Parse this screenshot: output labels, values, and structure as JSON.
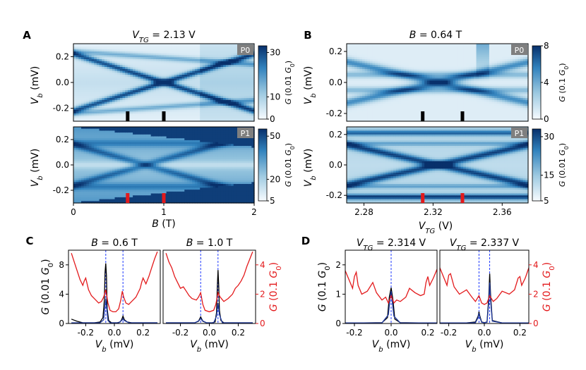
{
  "chart_data": [
    {
      "type": "heatmap",
      "panel": "A",
      "title": "V_TG = 2.13 V",
      "xlabel": "B (T)",
      "ylabel": "V_b (mV)",
      "xlim": [
        0,
        2
      ],
      "ylim": [
        -0.3,
        0.3
      ],
      "xticks": [
        "0",
        "1",
        "2"
      ],
      "yticks": [
        "0.2",
        "0.0",
        "-0.2"
      ],
      "subplots": [
        {
          "tag": "P0",
          "colorbar": {
            "label": "G (0.01 G0)",
            "ticks": [
              "30",
              "10",
              "0"
            ],
            "range": [
              0,
              33
            ]
          },
          "markers_x": [
            0.6,
            1.0
          ],
          "marker_color": "#000000"
        },
        {
          "tag": "P1",
          "colorbar": {
            "label": "G (0.01 G0)",
            "ticks": [
              "50",
              "20",
              "5"
            ],
            "range": [
              5,
              55
            ]
          },
          "markers_x": [
            0.6,
            1.0
          ],
          "marker_color": "#e31a1c"
        }
      ]
    },
    {
      "type": "heatmap",
      "panel": "B",
      "title": "B = 0.64 T",
      "xlabel": "V_TG (V)",
      "ylabel": "V_b (mV)",
      "xlim": [
        2.27,
        2.375
      ],
      "ylim": [
        -0.25,
        0.25
      ],
      "xticks": [
        "2.28",
        "2.32",
        "2.36"
      ],
      "yticks": [
        "0.2",
        "0.0",
        "-0.2"
      ],
      "subplots": [
        {
          "tag": "P0",
          "colorbar": {
            "label": "G (0.1 G0)",
            "ticks": [
              "8",
              "4",
              "0"
            ],
            "range": [
              0,
              8
            ]
          },
          "markers_x": [
            2.314,
            2.337
          ],
          "marker_color": "#000000"
        },
        {
          "tag": "P1",
          "colorbar": {
            "label": "G (0.01 G0)",
            "ticks": [
              "30",
              "15",
              "5"
            ],
            "range": [
              5,
              33
            ]
          },
          "markers_x": [
            2.314,
            2.337
          ],
          "marker_color": "#e31a1c"
        }
      ]
    },
    {
      "type": "line",
      "panel": "C",
      "xlabel": "V_b (mV)",
      "ylabel_left": "G (0.01 G0)",
      "ylabel_right": "G (0.1 G0)",
      "xlim": [
        -0.32,
        0.32
      ],
      "ylim_left": [
        0,
        10
      ],
      "ylim_right": [
        0,
        5
      ],
      "xticks": [
        "-0.2",
        "0.0",
        "0.2"
      ],
      "yticks_left": [
        "0",
        "4",
        "8"
      ],
      "yticks_right": [
        "0",
        "2",
        "4"
      ],
      "subplots": [
        {
          "title": "B = 0.6 T",
          "dashed_x": [
            -0.06,
            0.06
          ],
          "series": [
            {
              "axis": "left",
              "color": "#000000",
              "x": [
                -0.3,
                -0.26,
                -0.22,
                -0.18,
                -0.14,
                -0.1,
                -0.08,
                -0.07,
                -0.065,
                -0.06,
                -0.055,
                -0.05,
                -0.04,
                -0.02,
                0.0,
                0.02,
                0.04,
                0.05,
                0.06,
                0.07,
                0.09,
                0.12,
                0.18,
                0.24,
                0.3
              ],
              "y": [
                0.6,
                0.3,
                0.1,
                0.1,
                0.1,
                0.2,
                0.8,
                3.2,
                7.0,
                8.2,
                6.5,
                2.0,
                0.4,
                0.1,
                0.1,
                0.1,
                0.2,
                0.5,
                1.0,
                0.5,
                0.2,
                0.1,
                0.1,
                0.1,
                0.1
              ]
            },
            {
              "axis": "left",
              "color": "#1f3aa0",
              "x": [
                -0.3,
                -0.2,
                -0.1,
                -0.075,
                -0.065,
                -0.06,
                -0.055,
                -0.045,
                -0.03,
                0.0,
                0.03,
                0.05,
                0.06,
                0.07,
                0.1,
                0.2,
                0.3
              ],
              "y": [
                0.1,
                0.1,
                0.1,
                0.5,
                2.5,
                3.4,
                2.4,
                0.4,
                0.1,
                0.1,
                0.1,
                0.4,
                0.6,
                0.4,
                0.1,
                0.1,
                0.1
              ]
            },
            {
              "axis": "right",
              "color": "#e31a1c",
              "x": [
                -0.3,
                -0.28,
                -0.26,
                -0.24,
                -0.22,
                -0.21,
                -0.2,
                -0.19,
                -0.18,
                -0.16,
                -0.13,
                -0.11,
                -0.09,
                -0.075,
                -0.06,
                -0.045,
                -0.03,
                -0.01,
                0.01,
                0.03,
                0.045,
                0.055,
                0.065,
                0.08,
                0.1,
                0.12,
                0.15,
                0.18,
                0.19,
                0.2,
                0.21,
                0.22,
                0.24,
                0.26,
                0.28,
                0.3
              ],
              "y": [
                4.8,
                4.2,
                3.6,
                3.0,
                2.6,
                2.9,
                3.1,
                2.7,
                2.3,
                1.9,
                1.6,
                1.4,
                1.5,
                1.8,
                2.3,
                1.4,
                0.9,
                0.8,
                0.8,
                1.0,
                1.6,
                2.2,
                1.8,
                1.4,
                1.3,
                1.5,
                1.8,
                2.4,
                2.8,
                3.1,
                2.9,
                2.7,
                3.2,
                3.8,
                4.4,
                4.9
              ]
            }
          ]
        },
        {
          "title": "B = 1.0 T",
          "dashed_x": [
            -0.06,
            0.06
          ],
          "series": [
            {
              "axis": "left",
              "color": "#000000",
              "x": [
                -0.3,
                -0.2,
                -0.1,
                -0.075,
                -0.06,
                -0.045,
                -0.02,
                0.0,
                0.02,
                0.04,
                0.05,
                0.055,
                0.06,
                0.065,
                0.07,
                0.08,
                0.1,
                0.2,
                0.3
              ],
              "y": [
                0.1,
                0.1,
                0.1,
                0.3,
                0.9,
                0.3,
                0.1,
                0.1,
                0.1,
                0.2,
                1.5,
                5.0,
                7.3,
                5.2,
                1.8,
                0.4,
                0.1,
                0.1,
                0.1
              ]
            },
            {
              "axis": "left",
              "color": "#1f3aa0",
              "x": [
                -0.3,
                -0.2,
                -0.1,
                -0.07,
                -0.06,
                -0.05,
                -0.02,
                0.0,
                0.03,
                0.05,
                0.06,
                0.07,
                0.09,
                0.2,
                0.3
              ],
              "y": [
                0.1,
                0.1,
                0.1,
                0.4,
                0.7,
                0.4,
                0.1,
                0.1,
                0.1,
                1.0,
                2.8,
                1.2,
                0.1,
                0.1,
                0.1
              ]
            },
            {
              "axis": "right",
              "color": "#e31a1c",
              "x": [
                -0.3,
                -0.28,
                -0.26,
                -0.24,
                -0.22,
                -0.2,
                -0.18,
                -0.16,
                -0.14,
                -0.12,
                -0.09,
                -0.075,
                -0.06,
                -0.045,
                -0.03,
                0.0,
                0.03,
                0.045,
                0.06,
                0.075,
                0.1,
                0.13,
                0.16,
                0.18,
                0.2,
                0.22,
                0.24,
                0.26,
                0.28,
                0.3
              ],
              "y": [
                4.8,
                4.2,
                3.8,
                3.2,
                2.8,
                2.4,
                2.5,
                2.2,
                1.9,
                1.7,
                1.6,
                1.8,
                2.1,
                1.3,
                0.9,
                0.8,
                0.9,
                1.3,
                2.1,
                1.8,
                1.5,
                1.7,
                2.0,
                2.4,
                2.6,
                2.9,
                3.3,
                3.9,
                4.4,
                4.9
              ]
            }
          ]
        }
      ]
    },
    {
      "type": "line",
      "panel": "D",
      "xlabel": "V_b (mV)",
      "ylabel_left": "G (0.1 G0)",
      "ylabel_right": "G (0.1 G0)",
      "xlim": [
        -0.25,
        0.25
      ],
      "ylim_left": [
        0,
        2.5
      ],
      "ylim_right": [
        0,
        5
      ],
      "xticks": [
        "-0.2",
        "0.0",
        "0.2"
      ],
      "yticks_left": [
        "0",
        "1",
        "2"
      ],
      "yticks_right": [
        "0",
        "2",
        "4"
      ],
      "subplots": [
        {
          "title": "V_TG = 2.314 V",
          "dashed_x": [
            0.0
          ],
          "series": [
            {
              "axis": "left",
              "color": "#000000",
              "x": [
                -0.25,
                -0.15,
                -0.05,
                -0.02,
                -0.01,
                0.0,
                0.01,
                0.02,
                0.05,
                0.15,
                0.25
              ],
              "y": [
                0.02,
                0.02,
                0.03,
                0.2,
                0.9,
                1.22,
                0.8,
                0.15,
                0.03,
                0.02,
                0.02
              ]
            },
            {
              "axis": "left",
              "color": "#1f3aa0",
              "x": [
                -0.25,
                -0.05,
                -0.015,
                -0.005,
                0.0,
                0.005,
                0.015,
                0.05,
                0.25
              ],
              "y": [
                0.02,
                0.02,
                0.3,
                0.9,
                1.1,
                0.8,
                0.25,
                0.02,
                0.02
              ]
            },
            {
              "axis": "right",
              "color": "#e31a1c",
              "x": [
                -0.25,
                -0.23,
                -0.21,
                -0.2,
                -0.19,
                -0.18,
                -0.16,
                -0.13,
                -0.1,
                -0.08,
                -0.05,
                -0.03,
                -0.015,
                0.0,
                0.015,
                0.03,
                0.05,
                0.08,
                0.1,
                0.13,
                0.16,
                0.18,
                0.19,
                0.2,
                0.21,
                0.23,
                0.25
              ],
              "y": [
                3.6,
                3.0,
                2.4,
                3.2,
                3.5,
                2.6,
                2.0,
                2.2,
                2.8,
                2.1,
                1.6,
                1.8,
                1.4,
                1.9,
                1.4,
                1.6,
                1.5,
                1.8,
                2.4,
                2.1,
                1.9,
                2.0,
                2.8,
                3.2,
                2.6,
                3.1,
                3.7
              ]
            }
          ]
        },
        {
          "title": "V_TG = 2.337 V",
          "dashed_x": [
            -0.03,
            0.03
          ],
          "series": [
            {
              "axis": "left",
              "color": "#000000",
              "x": [
                -0.25,
                -0.1,
                -0.05,
                -0.035,
                -0.03,
                -0.025,
                -0.015,
                0.0,
                0.015,
                0.025,
                0.03,
                0.035,
                0.045,
                0.1,
                0.25
              ],
              "y": [
                0.02,
                0.02,
                0.05,
                0.25,
                0.4,
                0.25,
                0.05,
                0.03,
                0.05,
                0.9,
                1.7,
                1.0,
                0.1,
                0.02,
                0.02
              ]
            },
            {
              "axis": "left",
              "color": "#1f3aa0",
              "x": [
                -0.25,
                -0.1,
                -0.05,
                -0.035,
                -0.03,
                -0.025,
                -0.015,
                0.0,
                0.015,
                0.025,
                0.03,
                0.035,
                0.045,
                0.1,
                0.25
              ],
              "y": [
                0.02,
                0.02,
                0.03,
                0.2,
                0.35,
                0.2,
                0.04,
                0.03,
                0.04,
                0.7,
                1.4,
                0.8,
                0.08,
                0.02,
                0.02
              ]
            },
            {
              "axis": "right",
              "color": "#e31a1c",
              "x": [
                -0.25,
                -0.23,
                -0.21,
                -0.2,
                -0.19,
                -0.17,
                -0.14,
                -0.1,
                -0.07,
                -0.05,
                -0.03,
                -0.015,
                0.0,
                0.015,
                0.03,
                0.05,
                0.07,
                0.1,
                0.14,
                0.17,
                0.19,
                0.2,
                0.21,
                0.23,
                0.25
              ],
              "y": [
                3.8,
                3.2,
                2.6,
                3.3,
                3.4,
                2.5,
                2.0,
                2.3,
                1.8,
                1.5,
                1.9,
                1.4,
                1.3,
                1.4,
                1.9,
                1.5,
                1.7,
                2.2,
                2.0,
                2.3,
                3.1,
                3.2,
                2.6,
                3.1,
                3.8
              ]
            }
          ]
        }
      ]
    }
  ]
}
